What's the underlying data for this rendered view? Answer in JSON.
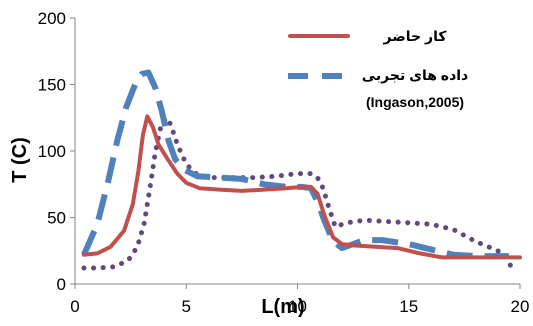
{
  "chart_data": {
    "type": "line",
    "title": "",
    "xlabel": "L(m)",
    "ylabel": "T (C)",
    "xlim": [
      0,
      20
    ],
    "ylim": [
      0,
      200
    ],
    "x_ticks": [
      0,
      5,
      10,
      15,
      20
    ],
    "y_ticks": [
      0,
      50,
      100,
      150,
      200
    ],
    "grid": false,
    "legend_position": "top-right",
    "series": [
      {
        "name": "کار حاضر",
        "color": "#c0504d",
        "style": "solid",
        "points": [
          [
            0.4,
            22
          ],
          [
            1.0,
            23
          ],
          [
            1.6,
            28
          ],
          [
            2.2,
            40
          ],
          [
            2.6,
            60
          ],
          [
            2.85,
            85
          ],
          [
            3.05,
            112
          ],
          [
            3.25,
            126
          ],
          [
            3.5,
            118
          ],
          [
            3.75,
            105
          ],
          [
            4.2,
            93
          ],
          [
            4.6,
            83
          ],
          [
            5.0,
            76
          ],
          [
            5.6,
            72
          ],
          [
            6.5,
            71
          ],
          [
            7.5,
            70
          ],
          [
            8.5,
            71
          ],
          [
            9.5,
            72
          ],
          [
            10.2,
            73
          ],
          [
            10.6,
            73
          ],
          [
            10.9,
            68
          ],
          [
            11.2,
            52
          ],
          [
            11.6,
            35
          ],
          [
            12.0,
            30
          ],
          [
            12.5,
            29
          ],
          [
            13.5,
            28
          ],
          [
            14.5,
            27
          ],
          [
            15.5,
            23
          ],
          [
            16.5,
            20
          ],
          [
            18.0,
            20
          ],
          [
            20.0,
            20
          ]
        ]
      },
      {
        "name": "داده های تجربی",
        "secondary_label": "(Ingason,2005)",
        "color": "#4f81bd",
        "style": "dashed",
        "points": [
          [
            0.4,
            22
          ],
          [
            1.0,
            45
          ],
          [
            1.5,
            78
          ],
          [
            1.9,
            108
          ],
          [
            2.3,
            133
          ],
          [
            2.7,
            150
          ],
          [
            3.0,
            158
          ],
          [
            3.3,
            159
          ],
          [
            3.6,
            148
          ],
          [
            3.9,
            130
          ],
          [
            4.2,
            108
          ],
          [
            4.5,
            94
          ],
          [
            4.9,
            86
          ],
          [
            5.5,
            81
          ],
          [
            6.5,
            80
          ],
          [
            7.5,
            79
          ],
          [
            8.5,
            75
          ],
          [
            9.5,
            73
          ],
          [
            10.2,
            73
          ],
          [
            10.6,
            72
          ],
          [
            10.9,
            62
          ],
          [
            11.2,
            48
          ],
          [
            11.6,
            32
          ],
          [
            12.0,
            27
          ],
          [
            12.5,
            30
          ],
          [
            13.0,
            33
          ],
          [
            13.8,
            33
          ],
          [
            15.0,
            30
          ],
          [
            16.0,
            26
          ],
          [
            17.0,
            22
          ],
          [
            18.0,
            21
          ],
          [
            19.5,
            21
          ]
        ]
      },
      {
        "name": "",
        "color": "#604a7b",
        "style": "dotted",
        "points": [
          [
            0.4,
            12
          ],
          [
            1.0,
            12
          ],
          [
            1.8,
            13
          ],
          [
            2.4,
            18
          ],
          [
            2.8,
            28
          ],
          [
            3.1,
            45
          ],
          [
            3.35,
            70
          ],
          [
            3.6,
            98
          ],
          [
            3.85,
            118
          ],
          [
            4.1,
            125
          ],
          [
            4.3,
            120
          ],
          [
            4.6,
            105
          ],
          [
            5.0,
            90
          ],
          [
            5.5,
            82
          ],
          [
            6.0,
            80
          ],
          [
            7.0,
            80
          ],
          [
            8.0,
            80
          ],
          [
            9.0,
            81
          ],
          [
            10.0,
            83
          ],
          [
            10.6,
            83
          ],
          [
            10.9,
            80
          ],
          [
            11.15,
            72
          ],
          [
            11.4,
            58
          ],
          [
            11.7,
            43
          ],
          [
            12.2,
            46
          ],
          [
            13.0,
            48
          ],
          [
            14.0,
            47
          ],
          [
            15.0,
            46
          ],
          [
            16.0,
            45
          ],
          [
            17.0,
            41
          ],
          [
            18.0,
            32
          ],
          [
            19.0,
            25
          ],
          [
            19.4,
            20
          ],
          [
            19.6,
            13
          ]
        ]
      }
    ]
  }
}
